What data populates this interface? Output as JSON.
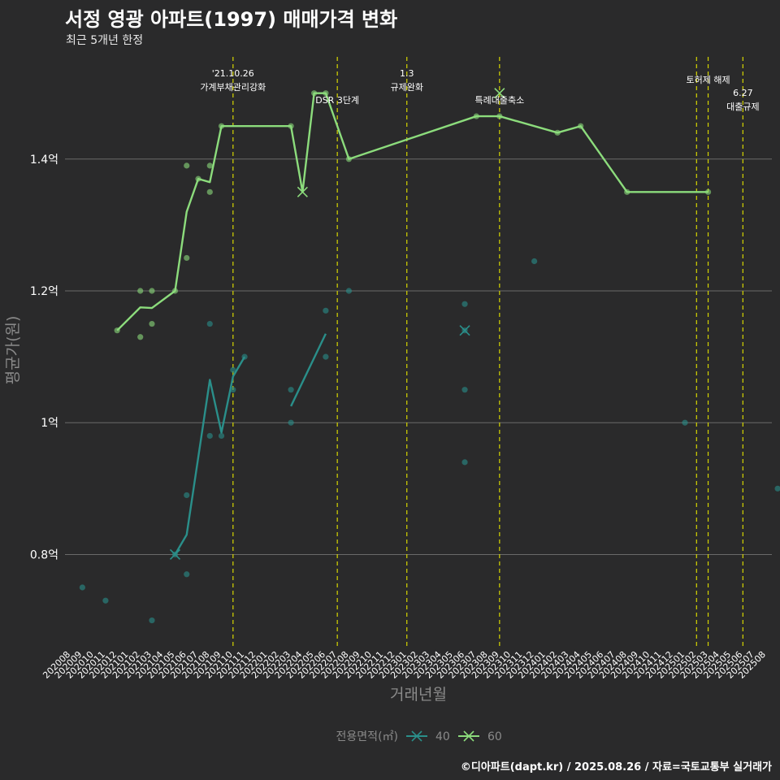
{
  "title": "서정 영광 아파트(1997) 매매가격 변화",
  "subtitle": "최근 5개년 한정",
  "footer": "©디아파트(dapt.kr) / 2025.08.26 / 자료=국토교통부 실거래가",
  "chart_data": {
    "type": "line",
    "xlabel": "거래년월",
    "ylabel": "평균가(원)",
    "ylim": [
      0.66,
      1.56
    ],
    "yticks": [
      {
        "value": 0.8,
        "label": "0.8억"
      },
      {
        "value": 1.0,
        "label": "1억"
      },
      {
        "value": 1.2,
        "label": "1.2억"
      },
      {
        "value": 1.4,
        "label": "1.4억"
      }
    ],
    "categories": [
      "202008",
      "202009",
      "202010",
      "202011",
      "202012",
      "202101",
      "202102",
      "202103",
      "202104",
      "202105",
      "202106",
      "202107",
      "202108",
      "202109",
      "202110",
      "202111",
      "202112",
      "202201",
      "202202",
      "202203",
      "202204",
      "202205",
      "202206",
      "202207",
      "202208",
      "202209",
      "202210",
      "202211",
      "202212",
      "202301",
      "202302",
      "202303",
      "202304",
      "202305",
      "202306",
      "202307",
      "202308",
      "202309",
      "202310",
      "202311",
      "202312",
      "202401",
      "202402",
      "202403",
      "202404",
      "202405",
      "202406",
      "202407",
      "202408",
      "202409",
      "202410",
      "202411",
      "202412",
      "202501",
      "202502",
      "202503",
      "202504",
      "202505",
      "202506",
      "202507",
      "202508"
    ],
    "legend_title": "전용면적(㎡)",
    "colors": {
      "40": "#2a8f8a",
      "60": "#8cdc7c",
      "vline": "#d6d600",
      "grid": "#6a6a6a"
    },
    "series": [
      {
        "name": "40",
        "color": "#2a8f8a",
        "line": [
          [
            9,
            0.8
          ],
          [
            10,
            0.83
          ],
          [
            12,
            1.065
          ],
          [
            13,
            0.985
          ],
          [
            14,
            1.07
          ],
          [
            15,
            1.1
          ],
          null,
          [
            19,
            1.025
          ],
          [
            22,
            1.135
          ]
        ],
        "points": [
          [
            1,
            0.75
          ],
          [
            3,
            0.73
          ],
          [
            7,
            0.7
          ],
          [
            9,
            0.8
          ],
          [
            10,
            0.89
          ],
          [
            10,
            0.77
          ],
          [
            12,
            0.98
          ],
          [
            12,
            1.15
          ],
          [
            13,
            0.98
          ],
          [
            14,
            1.08
          ],
          [
            14,
            1.05
          ],
          [
            15,
            1.1
          ],
          [
            19,
            1.05
          ],
          [
            19,
            1.0
          ],
          [
            22,
            1.17
          ],
          [
            22,
            1.1
          ],
          [
            24,
            1.2
          ],
          [
            34,
            1.18
          ],
          [
            34,
            1.14
          ],
          [
            34,
            1.05
          ],
          [
            34,
            0.94
          ],
          [
            40,
            1.245
          ],
          [
            53,
            1.0
          ],
          [
            61,
            0.9
          ]
        ],
        "crosses": [
          [
            9,
            0.8
          ],
          [
            34,
            1.14
          ]
        ]
      },
      {
        "name": "60",
        "color": "#8cdc7c",
        "line": [
          [
            4,
            1.14
          ],
          [
            6,
            1.175
          ],
          [
            7,
            1.174
          ],
          [
            9,
            1.2
          ],
          [
            10,
            1.32
          ],
          [
            11,
            1.37
          ],
          [
            12,
            1.365
          ],
          [
            13,
            1.45
          ],
          [
            19,
            1.45
          ],
          [
            20,
            1.35
          ],
          [
            21,
            1.5
          ],
          [
            22,
            1.5
          ],
          [
            24,
            1.4
          ],
          [
            35,
            1.465
          ],
          [
            37,
            1.465
          ],
          [
            42,
            1.44
          ],
          [
            44,
            1.45
          ],
          [
            48,
            1.35
          ],
          [
            55,
            1.35
          ]
        ],
        "points": [
          [
            4,
            1.14
          ],
          [
            6,
            1.2
          ],
          [
            6,
            1.13
          ],
          [
            7,
            1.2
          ],
          [
            7,
            1.15
          ],
          [
            9,
            1.2
          ],
          [
            10,
            1.39
          ],
          [
            10,
            1.25
          ],
          [
            11,
            1.37
          ],
          [
            12,
            1.39
          ],
          [
            12,
            1.35
          ],
          [
            13,
            1.45
          ],
          [
            19,
            1.45
          ],
          [
            21,
            1.5
          ],
          [
            22,
            1.5
          ],
          [
            24,
            1.4
          ],
          [
            35,
            1.465
          ],
          [
            37,
            1.465
          ],
          [
            42,
            1.44
          ],
          [
            44,
            1.45
          ],
          [
            48,
            1.35
          ],
          [
            55,
            1.35
          ]
        ],
        "crosses": [
          [
            20,
            1.35
          ],
          [
            37,
            1.5
          ]
        ]
      }
    ],
    "events": [
      {
        "index": 14,
        "lines": [
          "'21.10.26",
          "가계부채관리강화"
        ]
      },
      {
        "index": 23,
        "lines": [
          "DSR 3단계"
        ]
      },
      {
        "index": 29,
        "lines": [
          "1.3",
          "규제완화"
        ]
      },
      {
        "index": 37,
        "lines": [
          "특례대출축소"
        ]
      },
      {
        "index": 54,
        "lines": [
          ""
        ]
      },
      {
        "index": 55,
        "lines": [
          "토허제 해제"
        ]
      },
      {
        "index": 58,
        "lines": [
          "6.27",
          "대출규제"
        ]
      }
    ]
  }
}
